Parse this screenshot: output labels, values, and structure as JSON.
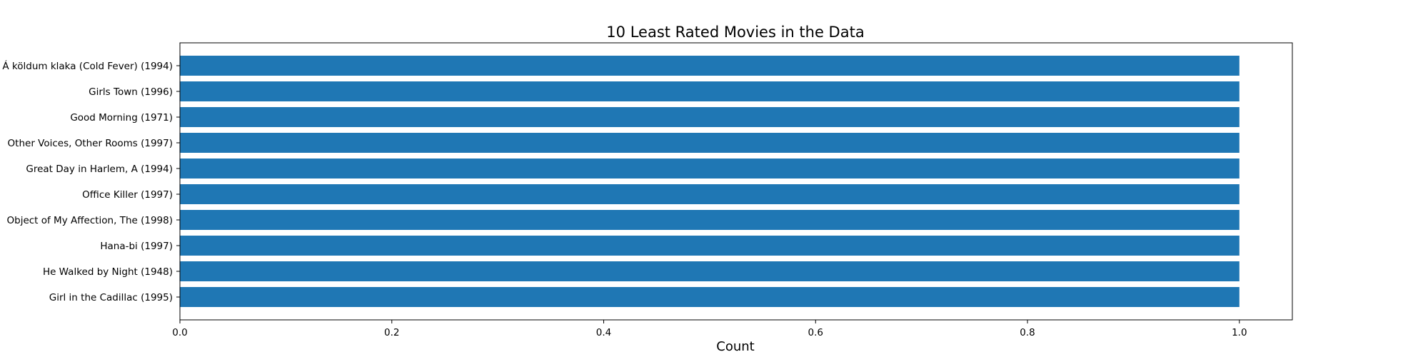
{
  "chart_data": {
    "type": "bar",
    "orientation": "horizontal",
    "title": "10 Least Rated Movies in the Data",
    "xlabel": "Count",
    "ylabel": "",
    "xlim": [
      0,
      1.05
    ],
    "xticks": [
      0.0,
      0.2,
      0.4,
      0.6,
      0.8,
      1.0
    ],
    "xtick_labels": [
      "0.0",
      "0.2",
      "0.4",
      "0.6",
      "0.8",
      "1.0"
    ],
    "grid": false,
    "bar_color": "#1f77b4",
    "categories": [
      "Á köldum klaka (Cold Fever) (1994)",
      "Girls Town (1996)",
      "Good Morning (1971)",
      "Other Voices, Other Rooms (1997)",
      "Great Day in Harlem, A (1994)",
      "Office Killer (1997)",
      "Object of My Affection, The (1998)",
      "Hana-bi (1997)",
      "He Walked by Night (1948)",
      "Girl in the Cadillac (1995)"
    ],
    "values": [
      1,
      1,
      1,
      1,
      1,
      1,
      1,
      1,
      1,
      1
    ]
  }
}
